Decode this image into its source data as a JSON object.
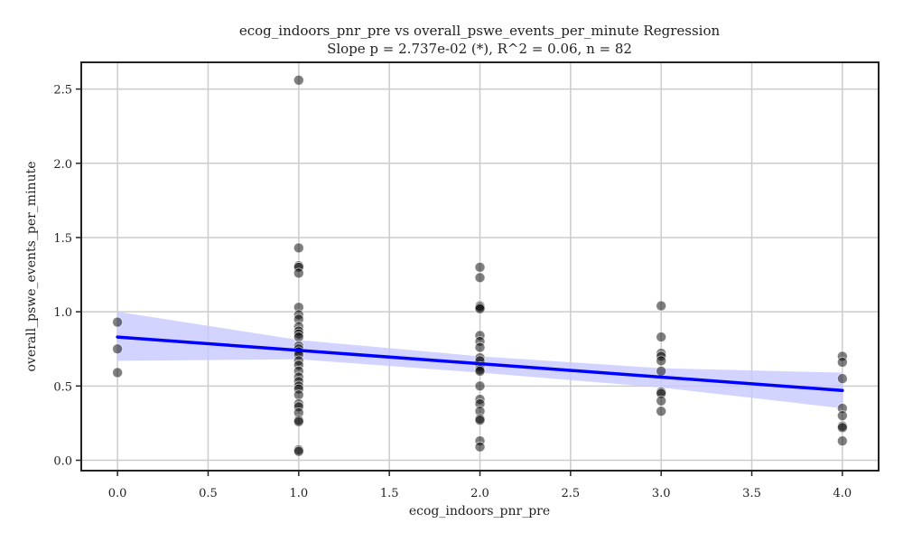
{
  "chart_data": {
    "type": "scatter",
    "title": "ecog_indoors_pnr_pre vs overall_pswe_events_per_minute Regression",
    "subtitle": "Slope p = 2.737e-02 (*), R^2 = 0.06, n = 82",
    "xlabel": "ecog_indoors_pnr_pre",
    "ylabel": "overall_pswe_events_per_minute",
    "xlim": [
      -0.2,
      4.2
    ],
    "ylim": [
      -0.07,
      2.68
    ],
    "xticks": [
      0.0,
      0.5,
      1.0,
      1.5,
      2.0,
      2.5,
      3.0,
      3.5,
      4.0
    ],
    "xtick_labels": [
      "0.0",
      "0.5",
      "1.0",
      "1.5",
      "2.0",
      "2.5",
      "3.0",
      "3.5",
      "4.0"
    ],
    "yticks": [
      0.0,
      0.5,
      1.0,
      1.5,
      2.0,
      2.5
    ],
    "ytick_labels": [
      "0.0",
      "0.5",
      "1.0",
      "1.5",
      "2.0",
      "2.5"
    ],
    "grid": true,
    "colors": {
      "points": "#000000",
      "regression_line": "#0000ff",
      "confidence_band": "#c8c8ff",
      "grid": "#cccccc",
      "frame": "#222222"
    },
    "points": [
      {
        "x": 0,
        "y": 0.93
      },
      {
        "x": 0,
        "y": 0.75
      },
      {
        "x": 0,
        "y": 0.59
      },
      {
        "x": 1,
        "y": 2.56
      },
      {
        "x": 1,
        "y": 1.43
      },
      {
        "x": 1,
        "y": 1.31
      },
      {
        "x": 1,
        "y": 1.3
      },
      {
        "x": 1,
        "y": 1.26
      },
      {
        "x": 1,
        "y": 1.03
      },
      {
        "x": 1,
        "y": 0.98
      },
      {
        "x": 1,
        "y": 0.95
      },
      {
        "x": 1,
        "y": 0.9
      },
      {
        "x": 1,
        "y": 0.87
      },
      {
        "x": 1,
        "y": 0.85
      },
      {
        "x": 1,
        "y": 0.83
      },
      {
        "x": 1,
        "y": 0.77
      },
      {
        "x": 1,
        "y": 0.75
      },
      {
        "x": 1,
        "y": 0.73
      },
      {
        "x": 1,
        "y": 0.71
      },
      {
        "x": 1,
        "y": 0.67
      },
      {
        "x": 1,
        "y": 0.64
      },
      {
        "x": 1,
        "y": 0.6
      },
      {
        "x": 1,
        "y": 0.56
      },
      {
        "x": 1,
        "y": 0.53
      },
      {
        "x": 1,
        "y": 0.5
      },
      {
        "x": 1,
        "y": 0.48
      },
      {
        "x": 1,
        "y": 0.44
      },
      {
        "x": 1,
        "y": 0.38
      },
      {
        "x": 1,
        "y": 0.36
      },
      {
        "x": 1,
        "y": 0.32
      },
      {
        "x": 1,
        "y": 0.27
      },
      {
        "x": 1,
        "y": 0.26
      },
      {
        "x": 1,
        "y": 0.07
      },
      {
        "x": 1,
        "y": 0.06
      },
      {
        "x": 2,
        "y": 1.3
      },
      {
        "x": 2,
        "y": 1.23
      },
      {
        "x": 2,
        "y": 1.04
      },
      {
        "x": 2,
        "y": 1.03
      },
      {
        "x": 2,
        "y": 1.02
      },
      {
        "x": 2,
        "y": 0.84
      },
      {
        "x": 2,
        "y": 0.8
      },
      {
        "x": 2,
        "y": 0.76
      },
      {
        "x": 2,
        "y": 0.69
      },
      {
        "x": 2,
        "y": 0.67
      },
      {
        "x": 2,
        "y": 0.63
      },
      {
        "x": 2,
        "y": 0.61
      },
      {
        "x": 2,
        "y": 0.6
      },
      {
        "x": 2,
        "y": 0.5
      },
      {
        "x": 2,
        "y": 0.41
      },
      {
        "x": 2,
        "y": 0.38
      },
      {
        "x": 2,
        "y": 0.33
      },
      {
        "x": 2,
        "y": 0.28
      },
      {
        "x": 2,
        "y": 0.27
      },
      {
        "x": 2,
        "y": 0.13
      },
      {
        "x": 2,
        "y": 0.09
      },
      {
        "x": 3,
        "y": 1.04
      },
      {
        "x": 3,
        "y": 0.83
      },
      {
        "x": 3,
        "y": 0.72
      },
      {
        "x": 3,
        "y": 0.7
      },
      {
        "x": 3,
        "y": 0.67
      },
      {
        "x": 3,
        "y": 0.6
      },
      {
        "x": 3,
        "y": 0.46
      },
      {
        "x": 3,
        "y": 0.45
      },
      {
        "x": 3,
        "y": 0.4
      },
      {
        "x": 3,
        "y": 0.33
      },
      {
        "x": 4,
        "y": 0.7
      },
      {
        "x": 4,
        "y": 0.66
      },
      {
        "x": 4,
        "y": 0.55
      },
      {
        "x": 4,
        "y": 0.35
      },
      {
        "x": 4,
        "y": 0.3
      },
      {
        "x": 4,
        "y": 0.23
      },
      {
        "x": 4,
        "y": 0.22
      },
      {
        "x": 4,
        "y": 0.13
      }
    ],
    "regression_line": [
      {
        "x": 0.0,
        "y": 0.83
      },
      {
        "x": 4.0,
        "y": 0.47
      }
    ],
    "confidence_band": {
      "x": [
        0.0,
        1.0,
        2.0,
        3.0,
        4.0
      ],
      "upper": [
        1.0,
        0.81,
        0.7,
        0.62,
        0.59
      ],
      "lower": [
        0.67,
        0.68,
        0.59,
        0.49,
        0.35
      ]
    }
  }
}
